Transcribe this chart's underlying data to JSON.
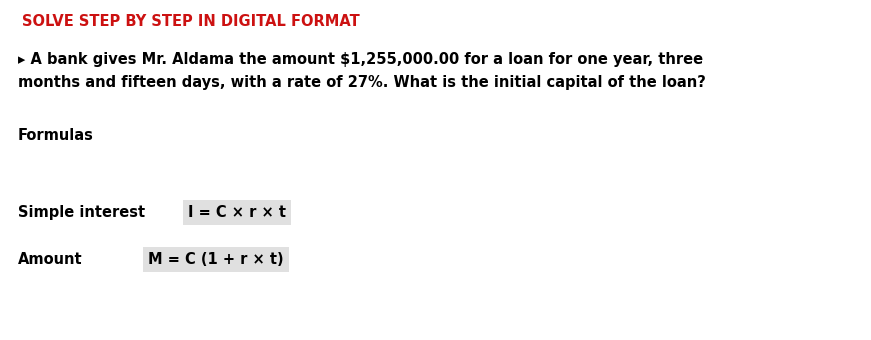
{
  "bg_color": "#ffffff",
  "title_text": "SOLVE STEP BY STEP IN DIGITAL FORMAT",
  "title_color": "#cc1111",
  "title_fontsize": 10.5,
  "problem_line1": "▸ A bank gives Mr. Aldama the amount $1,255,000.00 for a loan for one year, three",
  "problem_line2": "months and fifteen days, with a rate of 27%. What is the initial capital of the loan?",
  "problem_fontsize": 10.5,
  "problem_color": "#000000",
  "formulas_label": "Formulas",
  "formulas_fontsize": 10.5,
  "si_label": "Simple interest",
  "si_formula": "I = C × r × t",
  "si_fontsize": 10.5,
  "amt_label": "Amount",
  "amt_formula": "M = C (1 + r × t)",
  "amt_fontsize": 10.5,
  "formula_bg": "#e0e0e0",
  "text_color": "#000000",
  "fig_width": 8.71,
  "fig_height": 3.4,
  "dpi": 100
}
